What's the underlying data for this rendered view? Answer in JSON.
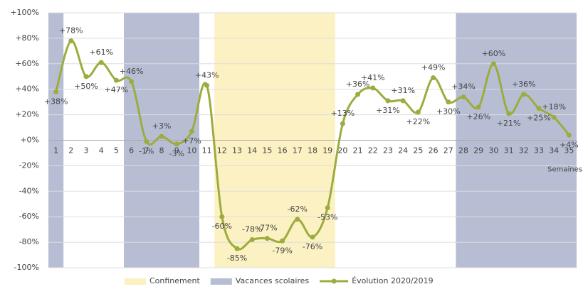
{
  "chart_data": {
    "type": "line",
    "x_label": "Semaines",
    "categories": [
      "1",
      "2",
      "3",
      "4",
      "5",
      "6",
      "7",
      "8",
      "9",
      "10",
      "11",
      "12",
      "13",
      "14",
      "15",
      "16",
      "17",
      "18",
      "19",
      "20",
      "21",
      "22",
      "23",
      "24",
      "25",
      "26",
      "27",
      "28",
      "29",
      "30",
      "31",
      "32",
      "33",
      "34",
      "35"
    ],
    "series": [
      {
        "name": "Évolution 2020/2019",
        "color": "#9cac3e",
        "values": [
          38,
          78,
          50,
          61,
          47,
          46,
          -1,
          3,
          -3,
          7,
          43,
          -60,
          -85,
          -78,
          -77,
          -79,
          -62,
          -76,
          -53,
          13,
          36,
          41,
          31,
          31,
          22,
          49,
          30,
          34,
          26,
          60,
          21,
          36,
          25,
          18,
          4
        ],
        "value_labels": [
          "+38%",
          "+78%",
          "+50%",
          "+61%",
          "+47%",
          "+46%",
          "-1%",
          "+3%",
          "-3%",
          "+7%",
          "+43%",
          "-60%",
          "-85%",
          "-78%",
          "-77%",
          "-79%",
          "-62%",
          "-76%",
          "-53%",
          "+13%",
          "+36%",
          "+41%",
          "+31%",
          "+31%",
          "+22%",
          "+49%",
          "+30%",
          "+34%",
          "+26%",
          "+60%",
          "+21%",
          "+36%",
          "+25%",
          "+18%",
          "+4%"
        ]
      }
    ],
    "bands": [
      {
        "name": "Confinement",
        "color": "#fbf1c3",
        "ranges": [
          [
            12,
            19
          ]
        ]
      },
      {
        "name": "Vacances scolaires",
        "color": "#b7bed4",
        "ranges": [
          [
            1,
            1
          ],
          [
            6,
            10
          ],
          [
            28,
            35
          ]
        ]
      }
    ],
    "ylim": [
      -100,
      100
    ],
    "yticks": [
      {
        "value": -100,
        "label": "-100%"
      },
      {
        "value": -80,
        "label": "-80%"
      },
      {
        "value": -60,
        "label": "-60%"
      },
      {
        "value": -40,
        "label": "-40%"
      },
      {
        "value": -20,
        "label": "-20%"
      },
      {
        "value": 0,
        "label": "+0%"
      },
      {
        "value": 20,
        "label": "+20%"
      },
      {
        "value": 40,
        "label": "+40%"
      },
      {
        "value": 60,
        "label": "+60%"
      },
      {
        "value": 80,
        "label": "+80%"
      },
      {
        "value": 100,
        "label": "+100%"
      }
    ],
    "grid": true,
    "legend": "bottom"
  }
}
